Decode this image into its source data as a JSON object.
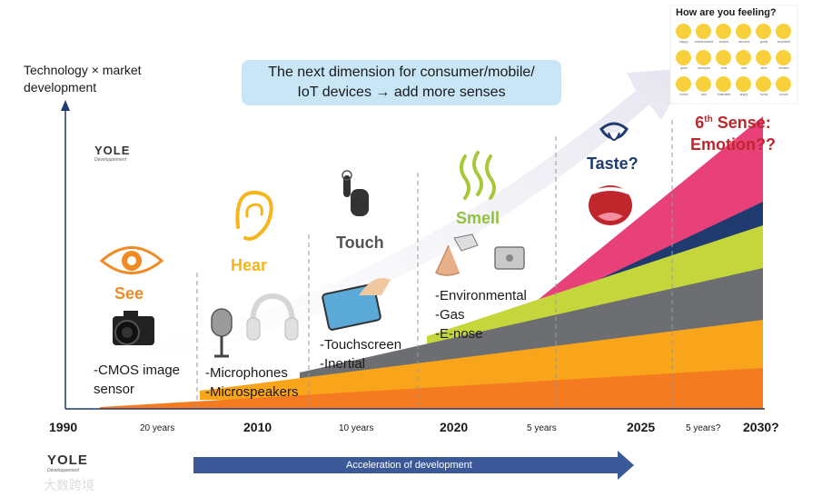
{
  "y_axis_label": [
    "Technology × market",
    "development"
  ],
  "banner": [
    "The next dimension for consumer/mobile/",
    "IoT devices → add more senses"
  ],
  "logo": {
    "name": "YOLE",
    "tagline": "Développement"
  },
  "years": [
    "1990",
    "2010",
    "2020",
    "2025",
    "2030?"
  ],
  "gaps": [
    "20 years",
    "10 years",
    "5 years",
    "5 years?"
  ],
  "stages": {
    "see": {
      "title": "See",
      "items": [
        "-CMOS image",
        "sensor"
      ]
    },
    "hear": {
      "title": "Hear",
      "items": [
        "-Microphones",
        "-Microspeakers"
      ]
    },
    "touch": {
      "title": "Touch",
      "items": [
        "-Touchscreen",
        "-Inertial"
      ]
    },
    "smell": {
      "title": "Smell",
      "items": [
        "-Environmental",
        "-Gas",
        "-E-nose"
      ]
    },
    "taste": {
      "title": "Taste?"
    },
    "emotion": {
      "title_main": "6",
      "title_sup": "th",
      "title_rest": " Sense:",
      "title_line2": "Emotion??"
    }
  },
  "emotion_chart": {
    "title": "How are you feeling?",
    "rows": [
      [
        "happy",
        "embarrassed",
        "scared",
        "nervous",
        "goofy",
        "surprised"
      ],
      [
        "quiet",
        "annoyed",
        "cool",
        "sad",
        "tired",
        "excited"
      ],
      [
        "bored",
        "sick",
        "frustrated",
        "angry",
        "funny",
        "proud"
      ]
    ]
  },
  "bottom_arrow_label": "Acceleration of development",
  "watermark": "大数跨境",
  "colors": {
    "orange": "#f47b20",
    "amber": "#f9a51b",
    "gray": "#6d6e71",
    "lime": "#c5d63d",
    "navy": "#1f3a6e",
    "pink": "#e8417a",
    "banner": "#c9e6f7",
    "stage_orange": "#f08a24",
    "stage_yellow": "#f5b51b",
    "stage_gray": "#555555",
    "stage_green": "#8fc23f",
    "stage_navy": "#1f3a6e",
    "stage_red": "#c0272d",
    "arrow": "#3b5998"
  },
  "icons": [
    "eye-icon",
    "camera-icon",
    "ear-icon",
    "microphone-icon",
    "headphones-icon",
    "hand-pointer-icon",
    "tablet-icon",
    "steam-icon",
    "nose-icon",
    "sensor-chip-icon",
    "tongue-icon",
    "mouth-icon"
  ]
}
